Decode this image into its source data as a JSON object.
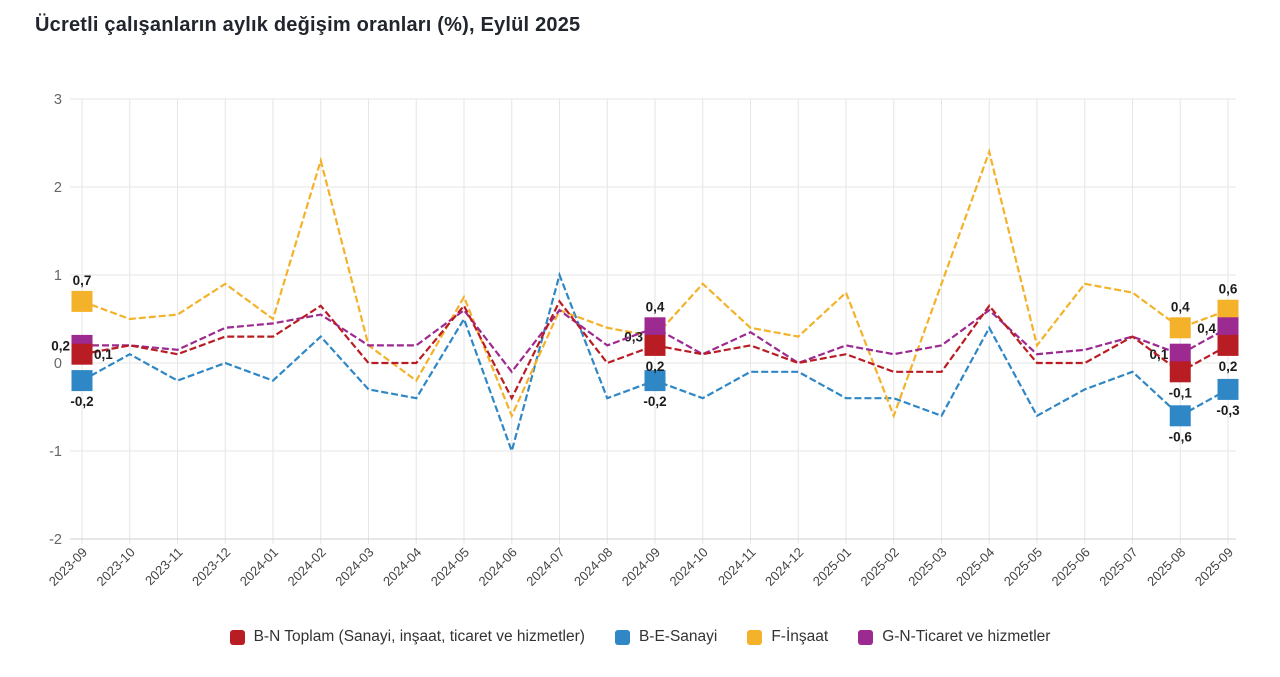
{
  "title": "Ücretli çalışanların aylık değişim oranları (%), Eylül 2025",
  "chart_data": {
    "type": "line",
    "title": "Ücretli çalışanların aylık değişim oranları (%), Eylül 2025",
    "xlabel": "",
    "ylabel": "",
    "ylim": [
      -2,
      3
    ],
    "yticks": [
      "3",
      "2",
      "1",
      "0",
      "-1",
      "-2"
    ],
    "ytick_values": [
      3,
      2,
      1,
      0,
      -1,
      -2
    ],
    "grid": true,
    "legend_position": "bottom",
    "line_style": "dashed",
    "categories": [
      "2023-09",
      "2023-10",
      "2023-11",
      "2023-12",
      "2024-01",
      "2024-02",
      "2024-03",
      "2024-04",
      "2024-05",
      "2024-06",
      "2024-07",
      "2024-08",
      "2024-09",
      "2024-10",
      "2024-11",
      "2024-12",
      "2025-01",
      "2025-02",
      "2025-03",
      "2025-04",
      "2025-05",
      "2025-06",
      "2025-07",
      "2025-08",
      "2025-09"
    ],
    "series": [
      {
        "id": "bn-toplam",
        "name": "B-N Toplam (Sanayi, inşaat, ticaret ve hizmetler)",
        "color": "#b91d24",
        "values": [
          0.1,
          0.2,
          0.1,
          0.3,
          0.3,
          0.65,
          0.0,
          0.0,
          0.65,
          -0.4,
          0.7,
          0.0,
          0.2,
          0.1,
          0.2,
          0.0,
          0.1,
          -0.1,
          -0.1,
          0.65,
          0.0,
          0.0,
          0.3,
          -0.1,
          0.2
        ],
        "point_labels": [
          {
            "i": 0,
            "text": "0,1",
            "pos": "right"
          },
          {
            "i": 12,
            "text": "0,2",
            "pos": "below"
          },
          {
            "i": 23,
            "text": "-0,1",
            "pos": "below"
          },
          {
            "i": 24,
            "text": "0,2",
            "pos": "below"
          }
        ]
      },
      {
        "id": "be-sanayi",
        "name": "B-E-Sanayi",
        "color": "#2f87c5",
        "values": [
          -0.2,
          0.1,
          -0.2,
          0.0,
          -0.2,
          0.3,
          -0.3,
          -0.4,
          0.5,
          -1.0,
          1.0,
          -0.4,
          -0.2,
          -0.4,
          -0.1,
          -0.1,
          -0.4,
          -0.4,
          -0.6,
          0.4,
          -0.6,
          -0.3,
          -0.1,
          -0.6,
          -0.3
        ],
        "point_labels": [
          {
            "i": 0,
            "text": "-0,2",
            "pos": "below"
          },
          {
            "i": 12,
            "text": "-0,2",
            "pos": "below"
          },
          {
            "i": 23,
            "text": "-0,6",
            "pos": "below"
          },
          {
            "i": 24,
            "text": "-0,3",
            "pos": "below"
          }
        ]
      },
      {
        "id": "f-insaat",
        "name": "F-İnşaat",
        "color": "#f3b229",
        "values": [
          0.7,
          0.5,
          0.55,
          0.9,
          0.5,
          2.3,
          0.2,
          -0.2,
          0.75,
          -0.6,
          0.6,
          0.4,
          0.3,
          0.9,
          0.4,
          0.3,
          0.8,
          -0.6,
          0.9,
          2.4,
          0.2,
          0.9,
          0.8,
          0.4,
          0.6
        ],
        "point_labels": [
          {
            "i": 0,
            "text": "0,7",
            "pos": "above"
          },
          {
            "i": 12,
            "text": "0,3",
            "pos": "left"
          },
          {
            "i": 23,
            "text": "0,4",
            "pos": "above"
          },
          {
            "i": 24,
            "text": "0,6",
            "pos": "above"
          }
        ]
      },
      {
        "id": "gn-ticaret",
        "name": "G-N-Ticaret ve hizmetler",
        "color": "#9c2a91",
        "values": [
          0.2,
          0.2,
          0.15,
          0.4,
          0.45,
          0.55,
          0.2,
          0.2,
          0.6,
          -0.1,
          0.6,
          0.2,
          0.4,
          0.1,
          0.35,
          0.0,
          0.2,
          0.1,
          0.2,
          0.6,
          0.1,
          0.15,
          0.3,
          0.1,
          0.4
        ],
        "point_labels": [
          {
            "i": 0,
            "text": "0,2",
            "pos": "left"
          },
          {
            "i": 12,
            "text": "0,4",
            "pos": "above"
          },
          {
            "i": 23,
            "text": "0,1",
            "pos": "left"
          },
          {
            "i": 24,
            "text": "0,4",
            "pos": "left"
          }
        ]
      }
    ]
  },
  "legend": {
    "items": [
      {
        "label": "B-N Toplam (Sanayi, inşaat, ticaret ve hizmetler)"
      },
      {
        "label": "B-E-Sanayi"
      },
      {
        "label": "F-İnşaat"
      },
      {
        "label": "G-N-Ticaret ve hizmetler"
      }
    ]
  },
  "colors": {
    "grid": "#e6e6e6",
    "axis_line": "#cfcfcf",
    "ytick_text": "#666666",
    "xtick_text": "#444444",
    "data_label": "#1c1c1c",
    "title": "#21252e"
  }
}
